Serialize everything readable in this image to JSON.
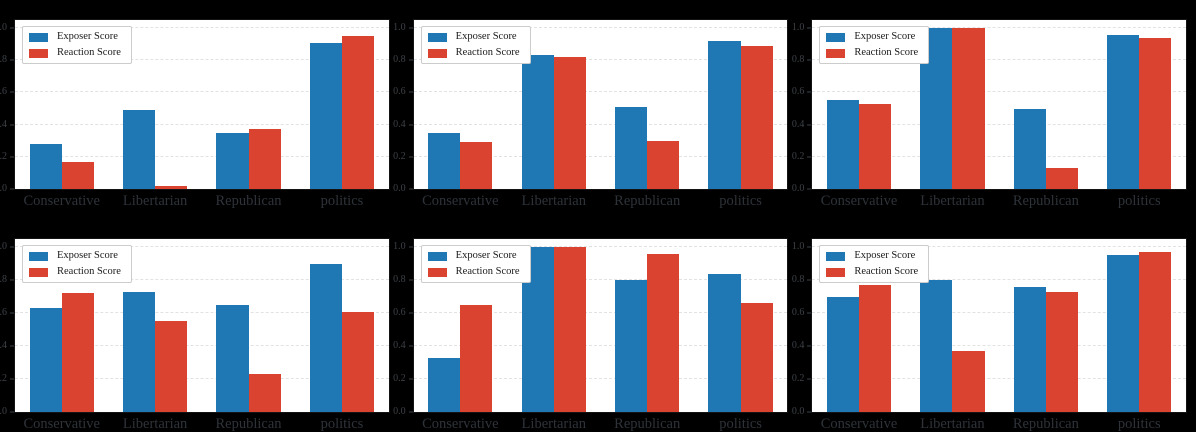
{
  "figure": {
    "background_color": "#000000",
    "rows": 2,
    "cols": 3,
    "axes_background": "#ffffff"
  },
  "legend": {
    "position": "upper left",
    "items": [
      {
        "label": "Exposer Score",
        "color": "#1f77b4"
      },
      {
        "label": "Reaction Score",
        "color": "#d9432f"
      }
    ]
  },
  "colors": {
    "exposer_blue": "#1f77b4",
    "reaction_red": "#d9432f",
    "gridline": "#e2e2e2",
    "tick_text": "#3d4247"
  },
  "chart_data": [
    {
      "type": "bar",
      "position": "top-left",
      "row": "top",
      "categories": [
        "Conservative",
        "Libertarian",
        "Republican",
        "politics"
      ],
      "series": [
        {
          "name": "Exposer Score",
          "color": "#1f77b4",
          "values": [
            0.28,
            0.49,
            0.35,
            0.91
          ]
        },
        {
          "name": "Reaction Score",
          "color": "#d9432f",
          "values": [
            0.17,
            0.02,
            0.37,
            0.95
          ]
        }
      ],
      "yticks": [
        0.0,
        0.2,
        0.4,
        0.6,
        0.8,
        1.0
      ],
      "ytick_labels": [
        "0.0",
        "0.2",
        "0.4",
        "0.6",
        "0.8",
        "1.0"
      ],
      "ylim": [
        0,
        1.05
      ],
      "grid": true,
      "legend_position": "upper left"
    },
    {
      "type": "bar",
      "position": "top-center",
      "row": "top",
      "categories": [
        "Conservative",
        "Libertarian",
        "Republican",
        "politics"
      ],
      "series": [
        {
          "name": "Exposer Score",
          "color": "#1f77b4",
          "values": [
            0.35,
            0.83,
            0.51,
            0.92
          ]
        },
        {
          "name": "Reaction Score",
          "color": "#d9432f",
          "values": [
            0.29,
            0.82,
            0.3,
            0.89
          ]
        }
      ],
      "yticks": [
        0.0,
        0.2,
        0.4,
        0.6,
        0.8,
        1.0
      ],
      "ytick_labels": [
        "0.0",
        "0.2",
        "0.4",
        "0.6",
        "0.8",
        "1.0"
      ],
      "ylim": [
        0,
        1.05
      ],
      "grid": true,
      "legend_position": "upper left"
    },
    {
      "type": "bar",
      "position": "top-right",
      "row": "top",
      "categories": [
        "Conservative",
        "Libertarian",
        "Republican",
        "politics"
      ],
      "series": [
        {
          "name": "Exposer Score",
          "color": "#1f77b4",
          "values": [
            0.55,
            1.0,
            0.5,
            0.96
          ]
        },
        {
          "name": "Reaction Score",
          "color": "#d9432f",
          "values": [
            0.53,
            1.0,
            0.13,
            0.94
          ]
        }
      ],
      "yticks": [
        0.0,
        0.2,
        0.4,
        0.6,
        0.8,
        1.0
      ],
      "ytick_labels": [
        "0.0",
        "0.2",
        "0.4",
        "0.6",
        "0.8",
        "1.0"
      ],
      "ylim": [
        0,
        1.05
      ],
      "grid": true,
      "legend_position": "upper left"
    },
    {
      "type": "bar",
      "position": "bottom-left",
      "row": "bottom",
      "categories": [
        "Conservative",
        "Libertarian",
        "Republican",
        "politics"
      ],
      "series": [
        {
          "name": "Exposer Score",
          "color": "#1f77b4",
          "values": [
            0.63,
            0.73,
            0.65,
            0.9
          ]
        },
        {
          "name": "Reaction Score",
          "color": "#d9432f",
          "values": [
            0.72,
            0.55,
            0.23,
            0.61
          ]
        }
      ],
      "yticks": [
        0.0,
        0.2,
        0.4,
        0.6,
        0.8,
        1.0
      ],
      "ytick_labels": [
        "0.0",
        "0.2",
        "0.4",
        "0.6",
        "0.8",
        "1.0"
      ],
      "ylim": [
        0,
        1.05
      ],
      "grid": true,
      "legend_position": "upper left"
    },
    {
      "type": "bar",
      "position": "bottom-center",
      "row": "bottom",
      "categories": [
        "Conservative",
        "Libertarian",
        "Republican",
        "politics"
      ],
      "series": [
        {
          "name": "Exposer Score",
          "color": "#1f77b4",
          "values": [
            0.33,
            1.0,
            0.8,
            0.84
          ]
        },
        {
          "name": "Reaction Score",
          "color": "#d9432f",
          "values": [
            0.65,
            1.0,
            0.96,
            0.66
          ]
        }
      ],
      "yticks": [
        0.0,
        0.2,
        0.4,
        0.6,
        0.8,
        1.0
      ],
      "ytick_labels": [
        "0.0",
        "0.2",
        "0.4",
        "0.6",
        "0.8",
        "1.0"
      ],
      "ylim": [
        0,
        1.05
      ],
      "grid": true,
      "legend_position": "upper left"
    },
    {
      "type": "bar",
      "position": "bottom-right",
      "row": "bottom",
      "categories": [
        "Conservative",
        "Libertarian",
        "Republican",
        "politics"
      ],
      "series": [
        {
          "name": "Exposer Score",
          "color": "#1f77b4",
          "values": [
            0.7,
            0.8,
            0.76,
            0.95
          ]
        },
        {
          "name": "Reaction Score",
          "color": "#d9432f",
          "values": [
            0.77,
            0.37,
            0.73,
            0.97
          ]
        }
      ],
      "yticks": [
        0.0,
        0.2,
        0.4,
        0.6,
        0.8,
        1.0
      ],
      "ytick_labels": [
        "0.0",
        "0.2",
        "0.4",
        "0.6",
        "0.8",
        "1.0"
      ],
      "ylim": [
        0,
        1.05
      ],
      "grid": true,
      "legend_position": "upper left"
    }
  ]
}
